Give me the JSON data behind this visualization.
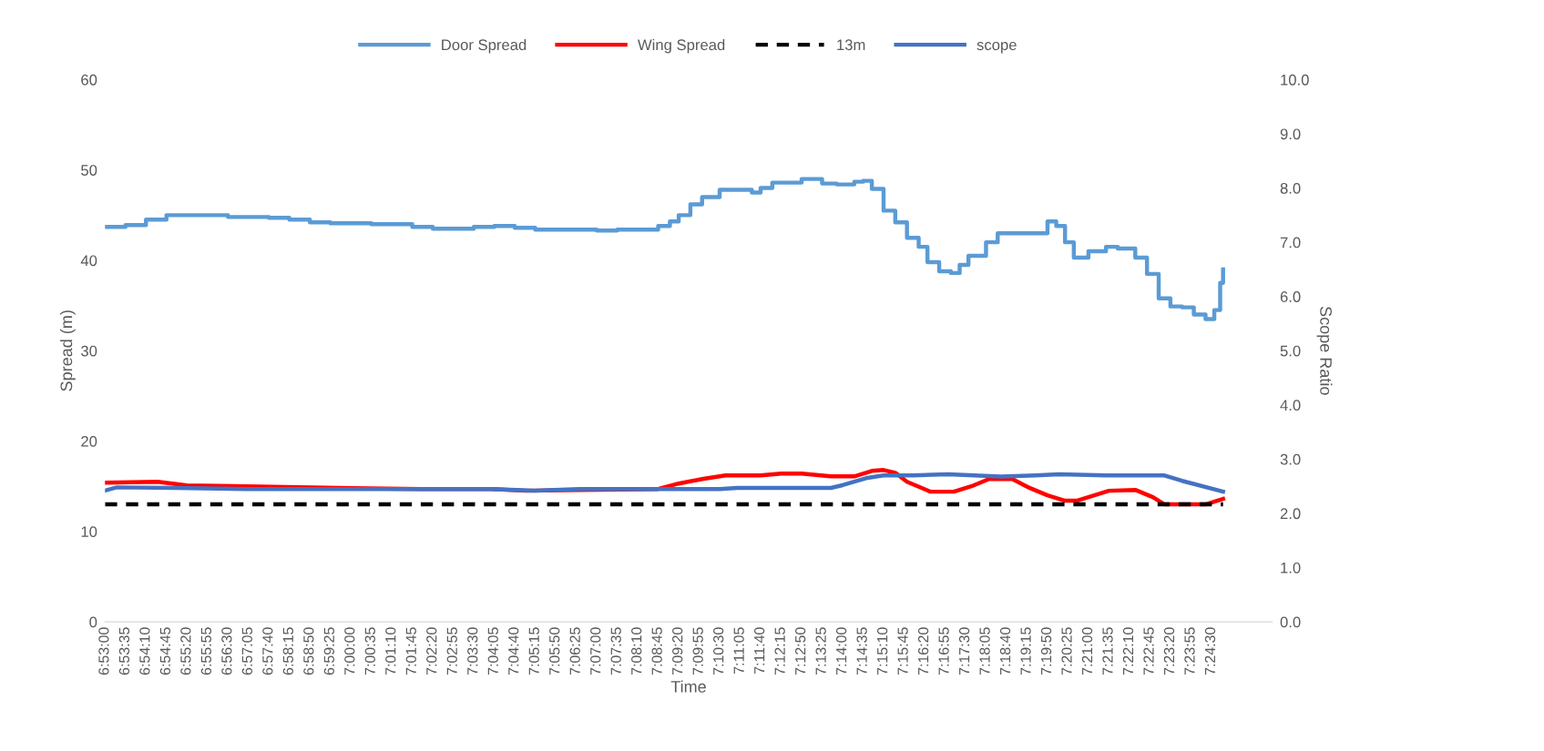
{
  "chart_data": {
    "type": "line",
    "xlabel": "Time",
    "ylabel": "Spread (m)",
    "y2label": "Scope Ratio",
    "legend": "top",
    "grid": false,
    "xlim": [
      6.88333,
      7.43722
    ],
    "ylim": [
      0,
      60
    ],
    "yticks": [
      0,
      10,
      20,
      30,
      40,
      50,
      60
    ],
    "y2lim": [
      0,
      10
    ],
    "y2ticks": [
      {
        "value": 0,
        "label": "0.0"
      },
      {
        "value": 1,
        "label": "1.0"
      },
      {
        "value": 2,
        "label": "2.0"
      },
      {
        "value": 3,
        "label": "3.0"
      },
      {
        "value": 4,
        "label": "4.0"
      },
      {
        "value": 5,
        "label": "5.0"
      },
      {
        "value": 6,
        "label": "6.0"
      },
      {
        "value": 7,
        "label": "7.0"
      },
      {
        "value": 8,
        "label": "8.0"
      },
      {
        "value": 9,
        "label": "9.0"
      },
      {
        "value": 10,
        "label": "10.0"
      }
    ],
    "xticks": [
      {
        "value": 6.88333,
        "label": "6:53:00"
      },
      {
        "value": 6.89306,
        "label": "6:53:35"
      },
      {
        "value": 6.90278,
        "label": "6:54:10"
      },
      {
        "value": 6.9125,
        "label": "6:54:45"
      },
      {
        "value": 6.92222,
        "label": "6:55:20"
      },
      {
        "value": 6.93194,
        "label": "6:55:55"
      },
      {
        "value": 6.94167,
        "label": "6:56:30"
      },
      {
        "value": 6.95139,
        "label": "6:57:05"
      },
      {
        "value": 6.96111,
        "label": "6:57:40"
      },
      {
        "value": 6.97083,
        "label": "6:58:15"
      },
      {
        "value": 6.98056,
        "label": "6:58:50"
      },
      {
        "value": 6.99028,
        "label": "6:59:25"
      },
      {
        "value": 7.0,
        "label": "7:00:00"
      },
      {
        "value": 7.00972,
        "label": "7:00:35"
      },
      {
        "value": 7.01944,
        "label": "7:01:10"
      },
      {
        "value": 7.02917,
        "label": "7:01:45"
      },
      {
        "value": 7.03889,
        "label": "7:02:20"
      },
      {
        "value": 7.04861,
        "label": "7:02:55"
      },
      {
        "value": 7.05833,
        "label": "7:03:30"
      },
      {
        "value": 7.06806,
        "label": "7:04:05"
      },
      {
        "value": 7.07778,
        "label": "7:04:40"
      },
      {
        "value": 7.0875,
        "label": "7:05:15"
      },
      {
        "value": 7.09722,
        "label": "7:05:50"
      },
      {
        "value": 7.10694,
        "label": "7:06:25"
      },
      {
        "value": 7.11667,
        "label": "7:07:00"
      },
      {
        "value": 7.12639,
        "label": "7:07:35"
      },
      {
        "value": 7.13611,
        "label": "7:08:10"
      },
      {
        "value": 7.14583,
        "label": "7:08:45"
      },
      {
        "value": 7.15556,
        "label": "7:09:20"
      },
      {
        "value": 7.16528,
        "label": "7:09:55"
      },
      {
        "value": 7.175,
        "label": "7:10:30"
      },
      {
        "value": 7.18472,
        "label": "7:11:05"
      },
      {
        "value": 7.19444,
        "label": "7:11:40"
      },
      {
        "value": 7.20417,
        "label": "7:12:15"
      },
      {
        "value": 7.21389,
        "label": "7:12:50"
      },
      {
        "value": 7.22361,
        "label": "7:13:25"
      },
      {
        "value": 7.23333,
        "label": "7:14:00"
      },
      {
        "value": 7.24306,
        "label": "7:14:35"
      },
      {
        "value": 7.25278,
        "label": "7:15:10"
      },
      {
        "value": 7.2625,
        "label": "7:15:45"
      },
      {
        "value": 7.27222,
        "label": "7:16:20"
      },
      {
        "value": 7.28194,
        "label": "7:16:55"
      },
      {
        "value": 7.29167,
        "label": "7:17:30"
      },
      {
        "value": 7.30139,
        "label": "7:18:05"
      },
      {
        "value": 7.31111,
        "label": "7:18:40"
      },
      {
        "value": 7.32083,
        "label": "7:19:15"
      },
      {
        "value": 7.33056,
        "label": "7:19:50"
      },
      {
        "value": 7.34028,
        "label": "7:20:25"
      },
      {
        "value": 7.35,
        "label": "7:21:00"
      },
      {
        "value": 7.35972,
        "label": "7:21:35"
      },
      {
        "value": 7.36944,
        "label": "7:22:10"
      },
      {
        "value": 7.37917,
        "label": "7:22:45"
      },
      {
        "value": 7.38889,
        "label": "7:23:20"
      },
      {
        "value": 7.39861,
        "label": "7:23:55"
      },
      {
        "value": 7.40833,
        "label": "7:24:30"
      }
    ],
    "series": [
      {
        "name": "Door Spread",
        "type": "step",
        "color": "#5b9bd5",
        "x": [
          6.88333,
          6.89306,
          6.90278,
          6.9125,
          6.92222,
          6.94167,
          6.96111,
          6.97083,
          6.98056,
          6.99028,
          7.00972,
          7.02917,
          7.03889,
          7.05833,
          7.06806,
          7.07778,
          7.0875,
          7.10694,
          7.11667,
          7.12639,
          7.14583,
          7.15139,
          7.15556,
          7.16111,
          7.16667,
          7.175,
          7.18472,
          7.19028,
          7.19444,
          7.2,
          7.21389,
          7.22361,
          7.23056,
          7.23889,
          7.24306,
          7.24722,
          7.25278,
          7.25833,
          7.26389,
          7.26944,
          7.27361,
          7.27917,
          7.28472,
          7.28889,
          7.29306,
          7.30139,
          7.30694,
          7.32778,
          7.33056,
          7.33472,
          7.33889,
          7.34306,
          7.35,
          7.35833,
          7.36389,
          7.37222,
          7.37778,
          7.38333,
          7.38889,
          7.39444,
          7.4,
          7.40556,
          7.40972,
          7.4125,
          7.41389
        ],
        "values": [
          43.7,
          43.9,
          44.5,
          45.0,
          45.0,
          44.8,
          44.7,
          44.5,
          44.2,
          44.1,
          44.0,
          43.7,
          43.5,
          43.7,
          43.8,
          43.6,
          43.4,
          43.4,
          43.3,
          43.4,
          43.8,
          44.3,
          45.0,
          46.2,
          47.0,
          47.8,
          47.8,
          47.5,
          48.0,
          48.6,
          49.0,
          48.5,
          48.4,
          48.7,
          48.8,
          47.9,
          45.5,
          44.2,
          42.5,
          41.5,
          39.8,
          38.8,
          38.6,
          39.5,
          40.5,
          42.0,
          43.0,
          43.0,
          44.3,
          43.8,
          42.0,
          40.3,
          41.0,
          41.5,
          41.3,
          40.3,
          38.5,
          35.8,
          34.9,
          34.8,
          34.0,
          33.5,
          34.5,
          37.5,
          39.0
        ]
      },
      {
        "name": "Wing Spread",
        "color": "#ff0000",
        "x": [
          6.88333,
          6.90833,
          6.92222,
          6.95,
          6.975,
          7.0,
          7.03333,
          7.06667,
          7.08333,
          7.10833,
          7.14583,
          7.15556,
          7.16667,
          7.17778,
          7.19444,
          7.20417,
          7.21389,
          7.22778,
          7.23889,
          7.24722,
          7.25278,
          7.25833,
          7.26389,
          7.275,
          7.28611,
          7.29444,
          7.30278,
          7.31389,
          7.32222,
          7.33056,
          7.33889,
          7.34444,
          7.35278,
          7.35972,
          7.37222,
          7.38056,
          7.38611,
          7.40556,
          7.41389
        ],
        "values": [
          15.4,
          15.5,
          15.1,
          15.0,
          14.9,
          14.8,
          14.7,
          14.7,
          14.5,
          14.6,
          14.7,
          15.3,
          15.8,
          16.2,
          16.2,
          16.4,
          16.4,
          16.1,
          16.1,
          16.7,
          16.8,
          16.5,
          15.5,
          14.4,
          14.4,
          15.0,
          15.8,
          15.8,
          14.8,
          14.0,
          13.4,
          13.4,
          14.0,
          14.5,
          14.6,
          13.8,
          13.0,
          13.0,
          13.6
        ]
      },
      {
        "name": "13m",
        "color": "#000000",
        "line_style": "dashed",
        "x": [
          6.88333,
          7.41389
        ],
        "values": [
          13,
          13
        ]
      },
      {
        "name": "scope",
        "axis": "y2",
        "color": "#4472c4",
        "x": [
          6.88333,
          6.88889,
          6.91667,
          6.95,
          7.0,
          7.03333,
          7.06667,
          7.0875,
          7.10833,
          7.14583,
          7.175,
          7.18333,
          7.20833,
          7.22778,
          7.23333,
          7.24444,
          7.25278,
          7.26667,
          7.28333,
          7.30833,
          7.325,
          7.33611,
          7.35833,
          7.38611,
          7.39444,
          7.41389
        ],
        "values": [
          2.42,
          2.48,
          2.47,
          2.45,
          2.45,
          2.45,
          2.45,
          2.42,
          2.45,
          2.45,
          2.45,
          2.47,
          2.47,
          2.47,
          2.52,
          2.65,
          2.7,
          2.7,
          2.72,
          2.68,
          2.7,
          2.72,
          2.7,
          2.7,
          2.6,
          2.4
        ]
      }
    ]
  }
}
